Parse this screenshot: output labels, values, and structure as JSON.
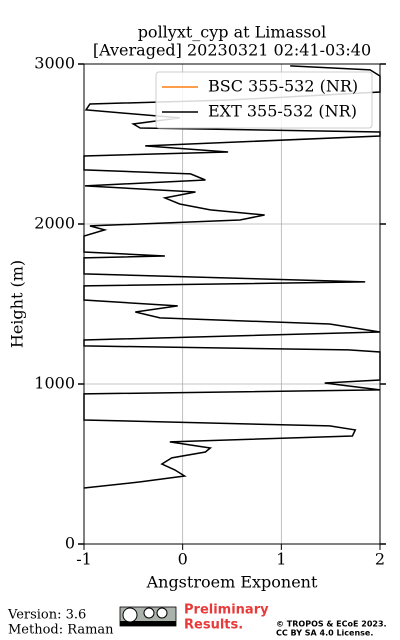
{
  "chart_data": {
    "type": "line",
    "title": [
      "pollyxt_cyp at Limassol",
      "[Averaged] 20230321 02:41-03:40"
    ],
    "x_label": "Angstroem Exponent",
    "y_label": "Height (m)",
    "xlim": [
      -1,
      2
    ],
    "xticks": [
      -1,
      0,
      1,
      2
    ],
    "ylim": [
      0,
      3000
    ],
    "yticks": [
      0,
      1000,
      2000,
      3000
    ],
    "grid": true,
    "legend": "upper right",
    "y": [
      350,
      388,
      425,
      463,
      500,
      538,
      575,
      600,
      638,
      675,
      713,
      738,
      775,
      938,
      963,
      1006,
      1025,
      1200,
      1213,
      1238,
      1275,
      1325,
      1375,
      1413,
      1450,
      1488,
      1525,
      1613,
      1638,
      1688,
      1788,
      1800,
      1825,
      1925,
      1963,
      1988,
      2025,
      2056,
      2088,
      2125,
      2163,
      2200,
      2238,
      2275,
      2313,
      2338,
      2425,
      2450,
      2488,
      2550,
      2575,
      2600,
      2625,
      2663,
      2713,
      2750,
      2775,
      2825,
      2925,
      2963,
      2988
    ],
    "series": [
      {
        "name": "BSC 355-532 (NR)",
        "color": "#ff7f0e",
        "values": [
          null,
          null,
          null,
          null,
          null,
          null,
          null,
          null,
          null,
          null,
          null,
          null,
          null,
          null,
          null,
          null,
          null,
          null,
          null,
          null,
          null,
          null,
          null,
          null,
          null,
          null,
          null,
          null,
          null,
          null,
          null,
          null,
          null,
          null,
          null,
          null,
          null,
          null,
          null,
          null,
          null,
          null,
          null,
          null,
          null,
          null,
          null,
          null,
          null,
          null,
          null,
          null,
          null,
          null,
          null,
          null,
          null,
          null,
          null,
          null,
          null
        ]
      },
      {
        "name": "EXT 355-532 (NR)",
        "color": "#000000",
        "values": [
          -1.0,
          -0.43,
          0.02,
          -0.08,
          -0.21,
          -0.11,
          0.23,
          0.28,
          -0.13,
          1.72,
          1.75,
          1.49,
          -1.0,
          -1.0,
          2.0,
          1.44,
          2.0,
          2.0,
          1.68,
          -1.0,
          -1.0,
          2.0,
          1.49,
          -0.23,
          -0.48,
          -0.05,
          -1.0,
          -1.0,
          1.85,
          -1.0,
          -1.0,
          -0.18,
          -1.0,
          -1.0,
          -0.79,
          -0.94,
          0.58,
          0.83,
          0.28,
          -0.03,
          -0.18,
          0.13,
          -0.99,
          0.23,
          0.08,
          -1.0,
          -1.0,
          0.46,
          -0.38,
          2.0,
          2.0,
          -0.43,
          -0.5,
          -0.03,
          -0.98,
          -0.94,
          0.48,
          2.0,
          2.0,
          1.9,
          1.09
        ]
      }
    ]
  },
  "footer": {
    "version": "Version: 3.6",
    "method": "Method: Raman",
    "preliminary": [
      "Preliminary",
      "Results."
    ],
    "copyright": [
      "© TROPOS & ECoE 2023.",
      "CC BY SA 4.0 License."
    ]
  }
}
